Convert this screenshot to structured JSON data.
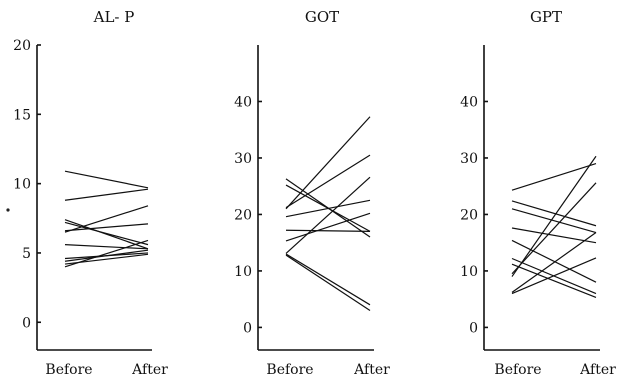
{
  "chart_data": [
    {
      "type": "line",
      "title": "AL- P",
      "categories": [
        "Before",
        "After"
      ],
      "ylim": [
        -2,
        20
      ],
      "yticks": [
        0,
        5,
        10,
        15,
        20
      ],
      "series": [
        {
          "values": [
            10.9,
            9.7
          ]
        },
        {
          "values": [
            8.8,
            9.6
          ]
        },
        {
          "values": [
            7.4,
            5.3
          ]
        },
        {
          "values": [
            7.2,
            5.6
          ]
        },
        {
          "values": [
            6.5,
            8.4
          ]
        },
        {
          "values": [
            6.6,
            7.1
          ]
        },
        {
          "values": [
            5.6,
            5.3
          ]
        },
        {
          "values": [
            4.6,
            5.0
          ]
        },
        {
          "values": [
            4.4,
            5.2
          ]
        },
        {
          "values": [
            4.0,
            5.9
          ]
        },
        {
          "values": [
            4.2,
            4.9
          ]
        }
      ]
    },
    {
      "type": "line",
      "title": "GOT",
      "categories": [
        "Before",
        "After"
      ],
      "ylim": [
        -4,
        50
      ],
      "yticks": [
        0,
        10,
        20,
        30,
        40
      ],
      "series": [
        {
          "values": [
            26.3,
            16.0
          ]
        },
        {
          "values": [
            25.2,
            17.0
          ]
        },
        {
          "values": [
            21.2,
            30.5
          ]
        },
        {
          "values": [
            21.0,
            37.3
          ]
        },
        {
          "values": [
            19.6,
            22.5
          ]
        },
        {
          "values": [
            17.2,
            17.0
          ]
        },
        {
          "values": [
            15.3,
            20.2
          ]
        },
        {
          "values": [
            13.1,
            26.6
          ]
        },
        {
          "values": [
            13.0,
            4.0
          ]
        },
        {
          "values": [
            12.8,
            3.0
          ]
        }
      ]
    },
    {
      "type": "line",
      "title": "GPT",
      "categories": [
        "Before",
        "After"
      ],
      "ylim": [
        -4,
        50
      ],
      "yticks": [
        0,
        10,
        20,
        30,
        40
      ],
      "series": [
        {
          "values": [
            24.3,
            29.0
          ]
        },
        {
          "values": [
            22.4,
            18.0
          ]
        },
        {
          "values": [
            21.0,
            16.8
          ]
        },
        {
          "values": [
            17.6,
            15.0
          ]
        },
        {
          "values": [
            15.4,
            8.0
          ]
        },
        {
          "values": [
            12.2,
            6.0
          ]
        },
        {
          "values": [
            11.2,
            5.3
          ]
        },
        {
          "values": [
            9.0,
            30.3
          ]
        },
        {
          "values": [
            9.5,
            25.6
          ]
        },
        {
          "values": [
            6.0,
            12.3
          ]
        },
        {
          "values": [
            6.2,
            16.8
          ]
        }
      ]
    }
  ]
}
